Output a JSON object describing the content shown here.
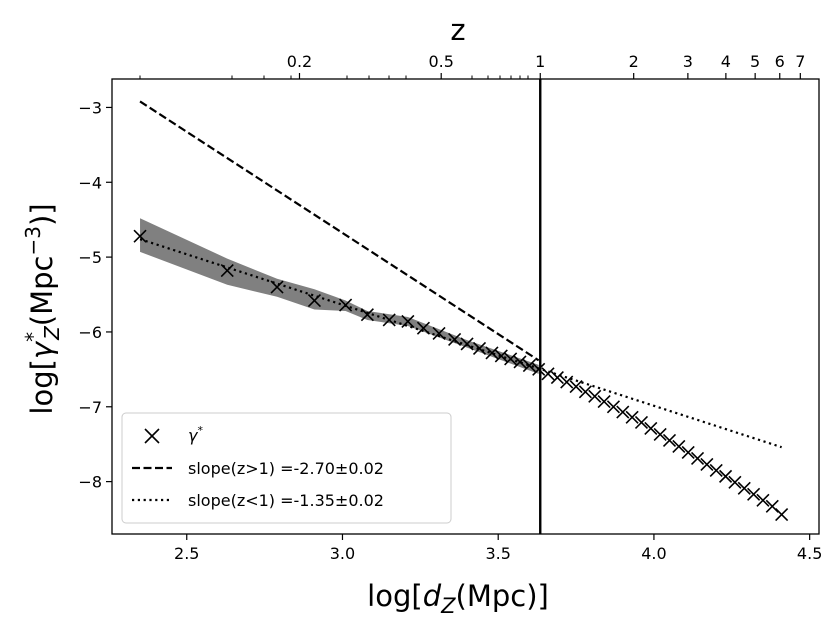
{
  "chart_data": {
    "type": "scatter",
    "title": "",
    "xlabel": "log[d_Z(Mpc)]",
    "ylabel": "log[γ*_Z(Mpc^-3)]",
    "top_xlabel": "z",
    "xlim": [
      2.26,
      4.53
    ],
    "ylim": [
      -8.7,
      -2.62
    ],
    "x_ticks": [
      2.5,
      3.0,
      3.5,
      4.0,
      4.5
    ],
    "x_tick_labels": [
      "2.5",
      "3.0",
      "3.5",
      "4.0",
      "4.5"
    ],
    "y_ticks": [
      -3,
      -4,
      -5,
      -6,
      -7,
      -8
    ],
    "y_tick_labels": [
      "−3",
      "−4",
      "−5",
      "−6",
      "−7",
      "−8"
    ],
    "top_ticks": [
      {
        "label": "0.2",
        "log_dz": 2.862
      },
      {
        "label": "0.5",
        "log_dz": 3.317
      },
      {
        "label": "1",
        "log_dz": 3.635
      },
      {
        "label": "2",
        "log_dz": 3.935
      },
      {
        "label": "3",
        "log_dz": 4.109
      },
      {
        "label": "4",
        "log_dz": 4.231
      },
      {
        "label": "5",
        "log_dz": 4.325
      },
      {
        "label": "6",
        "log_dz": 4.404
      },
      {
        "label": "7",
        "log_dz": 4.47
      }
    ],
    "vline_x": 3.635,
    "series": [
      {
        "name": "γ*",
        "marker": "x",
        "x": [
          2.35,
          2.63,
          2.79,
          2.91,
          3.01,
          3.08,
          3.15,
          3.21,
          3.26,
          3.31,
          3.36,
          3.4,
          3.44,
          3.48,
          3.51,
          3.54,
          3.57,
          3.6,
          3.63,
          3.66,
          3.69,
          3.72,
          3.75,
          3.78,
          3.81,
          3.84,
          3.87,
          3.9,
          3.93,
          3.96,
          3.99,
          4.02,
          4.05,
          4.08,
          4.11,
          4.14,
          4.17,
          4.2,
          4.23,
          4.26,
          4.29,
          4.32,
          4.35,
          4.38,
          4.41
        ],
        "y": [
          -4.72,
          -5.18,
          -5.4,
          -5.58,
          -5.64,
          -5.77,
          -5.84,
          -5.86,
          -5.95,
          -6.02,
          -6.1,
          -6.16,
          -6.22,
          -6.28,
          -6.32,
          -6.36,
          -6.4,
          -6.45,
          -6.5,
          -6.56,
          -6.61,
          -6.67,
          -6.73,
          -6.8,
          -6.86,
          -6.93,
          -7.0,
          -7.07,
          -7.14,
          -7.21,
          -7.29,
          -7.37,
          -7.45,
          -7.53,
          -7.61,
          -7.69,
          -7.77,
          -7.85,
          -7.93,
          -8.01,
          -8.09,
          -8.17,
          -8.25,
          -8.33,
          -8.44
        ]
      },
      {
        "name": "slope(z>1) =-2.70±0.02",
        "line_style": "dashed",
        "x": [
          2.35,
          3.63
        ],
        "y": [
          -2.92,
          -6.38
        ]
      },
      {
        "name": "slope(z<1) =-1.35±0.02",
        "line_style": "dotted",
        "x": [
          2.35,
          4.41
        ],
        "y": [
          -4.76,
          -7.54
        ]
      }
    ],
    "band": {
      "x": [
        2.35,
        2.63,
        2.79,
        2.91,
        3.01,
        3.08,
        3.21,
        3.4,
        3.63
      ],
      "upper": [
        -4.48,
        -5.02,
        -5.29,
        -5.43,
        -5.58,
        -5.72,
        -5.8,
        -6.11,
        -6.44
      ],
      "lower": [
        -4.93,
        -5.37,
        -5.53,
        -5.7,
        -5.72,
        -5.84,
        -5.92,
        -6.21,
        -6.56
      ]
    },
    "legend": {
      "position": "lower-left",
      "entries": [
        "γ*",
        "slope(z>1) =-2.70±0.02",
        "slope(z<1) =-1.35±0.02"
      ]
    },
    "grid": false
  }
}
